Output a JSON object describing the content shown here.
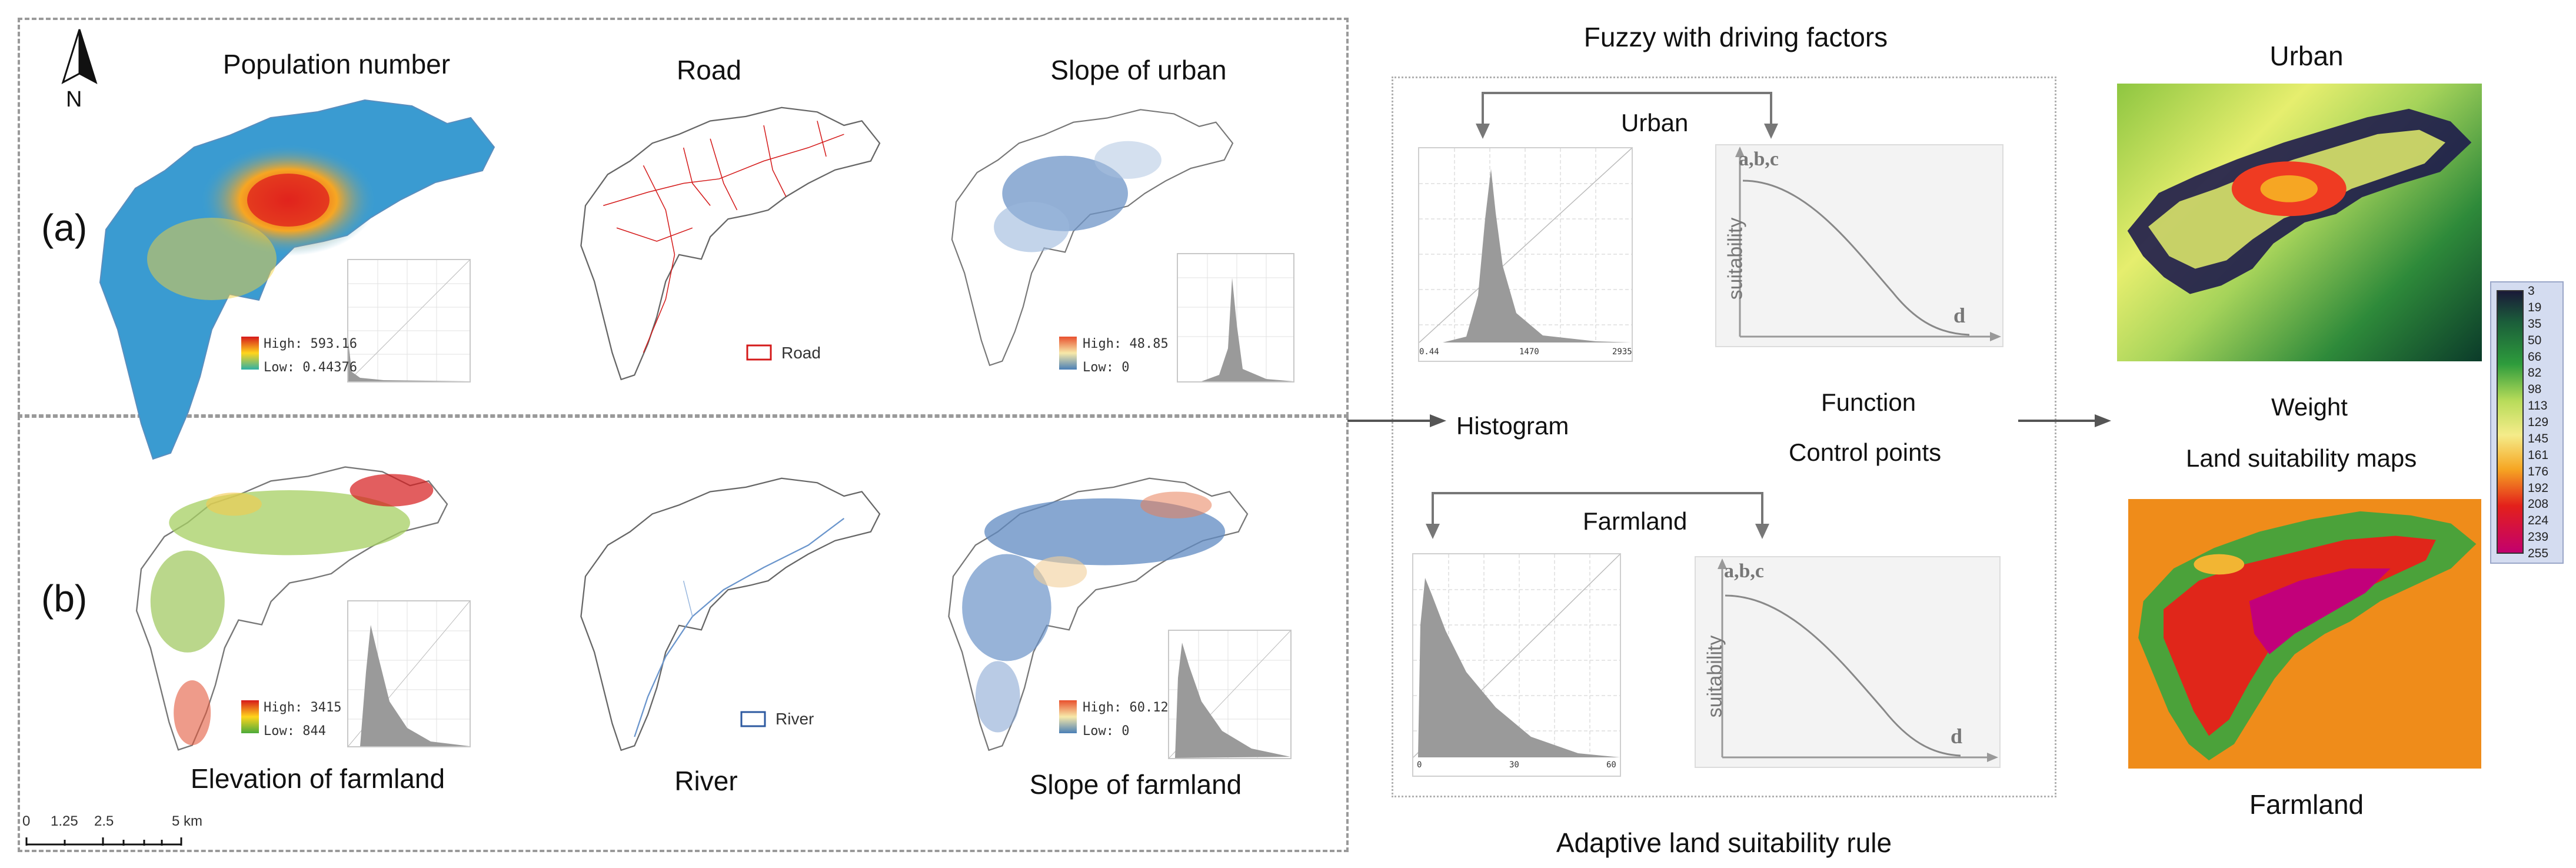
{
  "panels": {
    "a_label": "(a)",
    "b_label": "(b)",
    "north": "N",
    "scale": {
      "ticks": [
        "0",
        "1.25",
        "2.5",
        "5 km"
      ]
    },
    "maps": [
      {
        "title": "Population number",
        "legend_high": "High: 593.16",
        "legend_low": "Low: 0.44376",
        "colors": [
          "#d6191b",
          "#ffd51c",
          "#2fb0a4"
        ]
      },
      {
        "title": "Road",
        "legend_label": "Road",
        "color": "#d41a1a"
      },
      {
        "title": "Slope of urban",
        "legend_high": "High: 48.85",
        "legend_low": "Low: 0",
        "colors": [
          "#e8502e",
          "#f7e9a9",
          "#4a7fb6"
        ]
      },
      {
        "title": "Elevation of farmland",
        "legend_high": "High: 3415",
        "legend_low": "Low: 844",
        "colors": [
          "#d6191b",
          "#ffd51c",
          "#4bab3a"
        ]
      },
      {
        "title": "River",
        "legend_label": "River",
        "color": "#2e5aa0"
      },
      {
        "title": "Slope of farmland",
        "legend_high": "High: 60.12",
        "legend_low": "Low: 0",
        "colors": [
          "#e8502e",
          "#f7e9a9",
          "#4a7fb6"
        ]
      }
    ]
  },
  "middle": {
    "title": "Fuzzy with driving factors",
    "urban_label": "Urban",
    "farmland_label": "Farmland",
    "histogram_label": "Histogram",
    "function_label": "Function",
    "control_points_label": "Control points",
    "footer": "Adaptive land suitability rule",
    "urban_hist_ticks": [
      "0.44",
      "1470",
      "2935"
    ],
    "farm_hist_ticks": [
      "0",
      "30",
      "60"
    ],
    "curve_points": "a,b,c",
    "curve_y_label": "suitability",
    "curve_x_label": "d"
  },
  "right": {
    "urban_title": "Urban",
    "weight_label": "Weight",
    "maps_label": "Land suitability maps",
    "farmland_title": "Farmland",
    "colorbar": [
      "3",
      "19",
      "35",
      "50",
      "66",
      "82",
      "98",
      "113",
      "129",
      "145",
      "161",
      "176",
      "192",
      "208",
      "224",
      "239",
      "255"
    ]
  }
}
